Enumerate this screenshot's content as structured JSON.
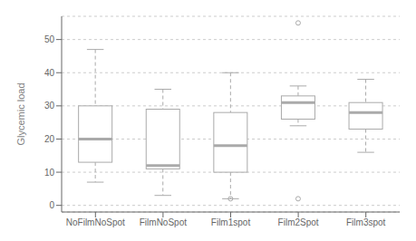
{
  "chart_data": {
    "type": "box",
    "categories": [
      "NoFilmNoSpot",
      "FilmNoSpot",
      "Film1spot",
      "Film2Spot",
      "Film3spot"
    ],
    "boxes": [
      {
        "q1": 13,
        "median": 20,
        "q3": 30,
        "whislo": 7,
        "whishi": 47,
        "fliers": []
      },
      {
        "q1": 11,
        "median": 12,
        "q3": 29,
        "whislo": 3,
        "whishi": 35,
        "fliers": []
      },
      {
        "q1": 10,
        "median": 18,
        "q3": 28,
        "whislo": 2,
        "whishi": 40,
        "fliers": [
          2
        ]
      },
      {
        "q1": 26,
        "median": 31,
        "q3": 33,
        "whislo": 24,
        "whishi": 36,
        "fliers": [
          55,
          2
        ]
      },
      {
        "q1": 23,
        "median": 28,
        "q3": 31,
        "whislo": 16,
        "whishi": 38,
        "fliers": []
      }
    ],
    "ylabel": "Glycemic load",
    "ylim": [
      -2,
      57
    ],
    "yticks": [
      0,
      10,
      20,
      30,
      40,
      50
    ],
    "color": "#aaaaaa"
  }
}
